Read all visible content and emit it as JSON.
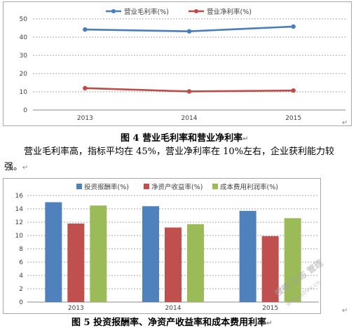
{
  "chart_data": [
    {
      "type": "line",
      "x": [
        "2013",
        "2014",
        "2015"
      ],
      "series": [
        {
          "name": "营业毛利率(%)",
          "values": [
            44.2,
            43.2,
            45.8
          ],
          "color": "#4a7ebb"
        },
        {
          "name": "营业净利率(%)",
          "values": [
            12.0,
            10.2,
            10.7
          ],
          "color": "#be4b48"
        }
      ],
      "ylim": [
        0,
        50
      ],
      "yticks": [
        0,
        10,
        20,
        30,
        40,
        50
      ],
      "grid": "dotted-horizontal",
      "legend": "top"
    },
    {
      "type": "bar",
      "categories": [
        "2013",
        "2014",
        "2015"
      ],
      "series": [
        {
          "name": "投资报酬率(%)",
          "values": [
            15.0,
            14.4,
            13.7
          ],
          "color": "#4f81bd"
        },
        {
          "name": "净资产收益率(%)",
          "values": [
            11.8,
            11.2,
            9.9
          ],
          "color": "#c0504d"
        },
        {
          "name": "成本费用利润率(%)",
          "values": [
            14.5,
            11.7,
            12.6
          ],
          "color": "#9bbb59"
        }
      ],
      "ylim": [
        0,
        16
      ],
      "yticks": [
        0,
        2,
        4,
        6,
        8,
        10,
        12,
        14,
        16
      ],
      "grid": "dotted-horizontal",
      "legend": "top"
    }
  ],
  "captions": {
    "fig4": "图 4  营业毛利率和营业净利率",
    "fig5": "图 5  投资报酬率、净资产收益率和成本费用利率"
  },
  "paragraph": "营业毛利率高，指标平均在 45%，营业净利率在 10%左右，企业获利能力较强。",
  "marks": {
    "return_arrow": "↵",
    "paragraph_mark": "↵"
  },
  "watermark": {
    "line1": "搜搜 生态 管理",
    "line2": "www.sbvv.cn"
  }
}
